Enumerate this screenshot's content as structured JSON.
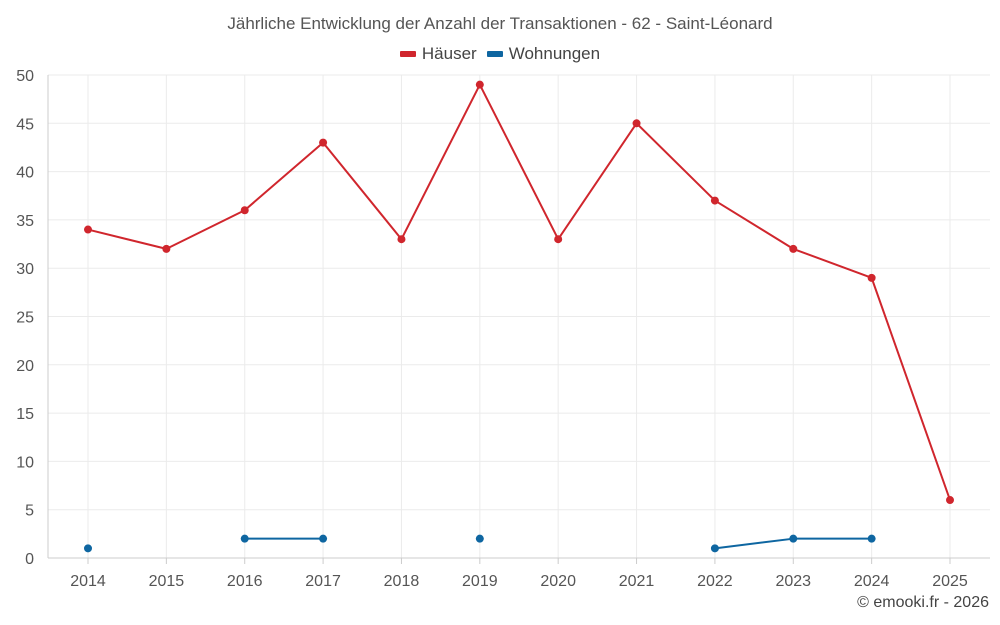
{
  "chart_data": {
    "type": "line",
    "title": "Jährliche Entwicklung der Anzahl der Transaktionen - 62 - Saint-Léonard",
    "categories": [
      "2014",
      "2015",
      "2016",
      "2017",
      "2018",
      "2019",
      "2020",
      "2021",
      "2022",
      "2023",
      "2024",
      "2025"
    ],
    "ylim": [
      0,
      50
    ],
    "yticks": [
      0,
      5,
      10,
      15,
      20,
      25,
      30,
      35,
      40,
      45,
      50
    ],
    "grid": true,
    "legend_position": "top-center",
    "series": [
      {
        "name": "Häuser",
        "color": "#d0262d",
        "values": [
          34,
          32,
          36,
          43,
          33,
          49,
          33,
          45,
          37,
          32,
          29,
          6
        ]
      },
      {
        "name": "Wohnungen",
        "color": "#0e66a1",
        "values": [
          1,
          null,
          2,
          2,
          null,
          2,
          null,
          null,
          1,
          2,
          2,
          null
        ]
      }
    ]
  },
  "credit": "© emooki.fr - 2026"
}
